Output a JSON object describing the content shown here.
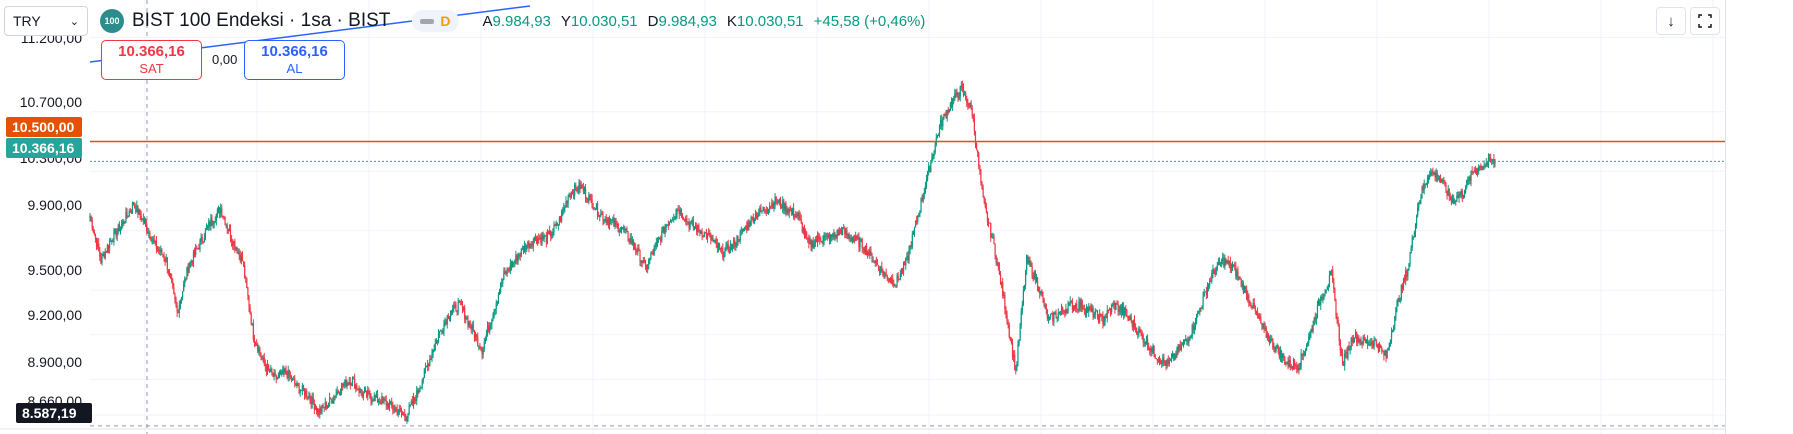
{
  "toolbar": {
    "currency": "TRY",
    "symbol_logo_text": "100",
    "symbol_title": "BIST 100 Endeksi · 1sa · BIST",
    "status_letter": "D"
  },
  "ohlc": {
    "open_label": "A",
    "open_value": "9.984,93",
    "high_label": "Y",
    "high_value": "10.030,51",
    "low_label": "D",
    "low_value": "9.984,93",
    "close_label": "K",
    "close_value": "10.030,51",
    "change": "+45,58 (+0,46%)"
  },
  "trading": {
    "sell_price": "10.366,16",
    "sell_label": "SAT",
    "spread": "0,00",
    "buy_price": "10.366,16",
    "buy_label": "AL"
  },
  "price_axis": {
    "labels": [
      "11.200,00",
      "10.700,00",
      "10.300,00",
      "9.900,00",
      "9.500,00",
      "9.200,00",
      "8.900,00",
      "8.660,00"
    ],
    "tag_alert": "10.500,00",
    "tag_last": "10.366,16",
    "tag_crosshair": "8.587,19"
  },
  "colors": {
    "up": "#089981",
    "down": "#f23645",
    "alert_line": "#e65100",
    "last_price": "#26a69a",
    "crosshair_tag": "#131722",
    "trend_line": "#2962ff"
  },
  "icons": {
    "download": "arrow-down-icon",
    "fullscreen": "fullscreen-icon",
    "currency_dropdown": "chevron-down-icon"
  },
  "chart_data": {
    "type": "candlestick",
    "ylim": [
      8600,
      11250
    ],
    "levels": {
      "alert": 10500,
      "last": 10366.16,
      "crosshair": 8587.19
    },
    "close_path": [
      10000,
      9700,
      9850,
      9950,
      10080,
      9950,
      9800,
      9700,
      9350,
      9650,
      9800,
      9950,
      10050,
      9850,
      9700,
      9200,
      9000,
      8900,
      8950,
      8850,
      8800,
      8680,
      8750,
      8850,
      8900,
      8800,
      8780,
      8750,
      8700,
      8650,
      8800,
      9000,
      9200,
      9350,
      9400,
      9250,
      9100,
      9350,
      9600,
      9700,
      9800,
      9850,
      9850,
      9950,
      10150,
      10200,
      10100,
      10000,
      9950,
      9900,
      9800,
      9650,
      9800,
      9950,
      10050,
      9950,
      9900,
      9850,
      9750,
      9800,
      9900,
      10000,
      10050,
      10100,
      10050,
      10000,
      9800,
      9850,
      9850,
      9900,
      9850,
      9800,
      9700,
      9600,
      9550,
      9700,
      10000,
      10300,
      10600,
      10750,
      10850,
      10700,
      10100,
      9800,
      9400,
      8950,
      9700,
      9550,
      9300,
      9350,
      9400,
      9400,
      9350,
      9300,
      9400,
      9350,
      9250,
      9150,
      9050,
      9000,
      9100,
      9200,
      9400,
      9600,
      9700,
      9650,
      9500,
      9350,
      9200,
      9100,
      9000,
      9000,
      9200,
      9450,
      9600,
      9000,
      9200,
      9150,
      9150,
      9050,
      9400,
      9650,
      10100,
      10300,
      10250,
      10100,
      10150,
      10300,
      10350,
      10366.16
    ]
  }
}
